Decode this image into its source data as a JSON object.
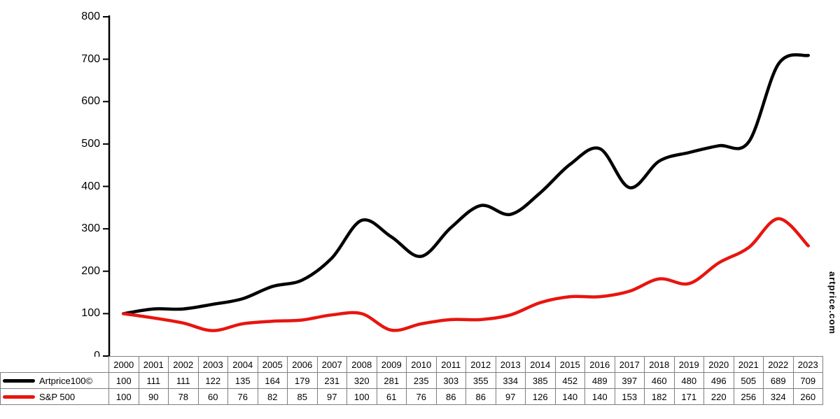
{
  "watermark": "artprice.com",
  "chart_data": {
    "type": "line",
    "x": [
      2000,
      2001,
      2002,
      2003,
      2004,
      2005,
      2006,
      2007,
      2008,
      2009,
      2010,
      2011,
      2012,
      2013,
      2014,
      2015,
      2016,
      2017,
      2018,
      2019,
      2020,
      2021,
      2022,
      2023
    ],
    "series": [
      {
        "name": "Artprice100©",
        "color": "#000000",
        "values": [
          100,
          111,
          111,
          122,
          135,
          164,
          179,
          231,
          320,
          281,
          235,
          303,
          355,
          334,
          385,
          452,
          489,
          397,
          460,
          480,
          496,
          505,
          689,
          709
        ]
      },
      {
        "name": "S&P 500",
        "color": "#e8150f",
        "values": [
          100,
          90,
          78,
          60,
          76,
          82,
          85,
          97,
          100,
          61,
          76,
          86,
          86,
          97,
          126,
          140,
          140,
          153,
          182,
          171,
          220,
          256,
          324,
          260
        ]
      }
    ],
    "ylim": [
      0,
      800
    ],
    "yticks": [
      0,
      100,
      200,
      300,
      400,
      500,
      600,
      700,
      800
    ],
    "grid": false,
    "legend_position": "table-left",
    "title": "",
    "xlabel": "",
    "ylabel": ""
  }
}
